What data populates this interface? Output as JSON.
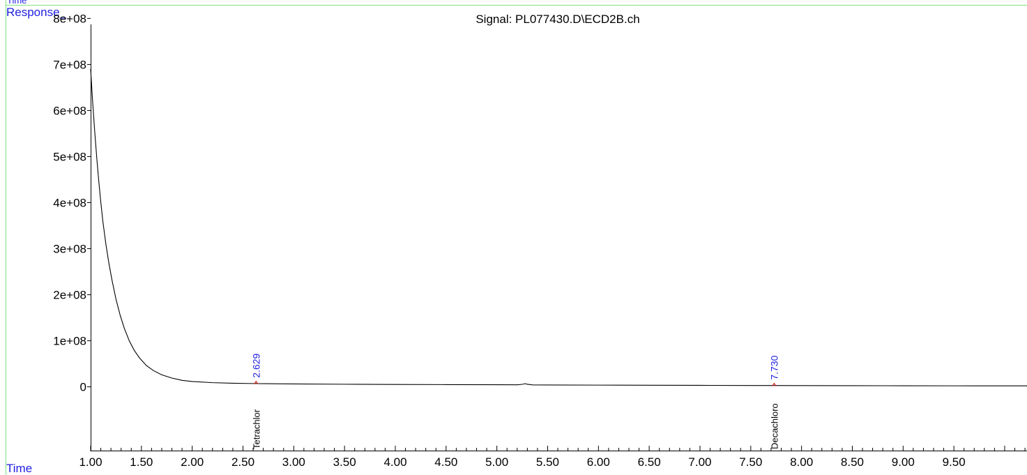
{
  "header": {
    "corner_label": "Time",
    "y_label": "Response_",
    "x_label": "Time",
    "title": "Signal: PL077430.D\\ECD2B.ch"
  },
  "colors": {
    "frame": "#7FE07F",
    "axis": "#000000",
    "trace": "#000000",
    "label_blue": "#1F1FE0",
    "peak_marker": "#E02020",
    "compound_text": "#000000"
  },
  "chart_data": {
    "type": "line",
    "title": "Signal: PL077430.D\\ECD2B.ch",
    "xlabel": "Time",
    "ylabel": "Response_",
    "xlim": [
      1.0,
      10.22
    ],
    "ylim": [
      -140000000,
      840000000
    ],
    "x_ticks": [
      "1.00",
      "1.50",
      "2.00",
      "2.50",
      "3.00",
      "3.50",
      "4.00",
      "4.50",
      "5.00",
      "5.50",
      "6.00",
      "6.50",
      "7.00",
      "7.50",
      "8.00",
      "8.50",
      "9.00",
      "9.50"
    ],
    "x_tick_values": [
      1.0,
      1.5,
      2.0,
      2.5,
      3.0,
      3.5,
      4.0,
      4.5,
      5.0,
      5.5,
      6.0,
      6.5,
      7.0,
      7.5,
      8.0,
      8.5,
      9.0,
      9.5
    ],
    "y_ticks": [
      "0",
      "1e+08",
      "2e+08",
      "3e+08",
      "4e+08",
      "5e+08",
      "6e+08",
      "7e+08",
      "8e+08"
    ],
    "y_tick_values": [
      0,
      100000000,
      200000000,
      300000000,
      400000000,
      500000000,
      600000000,
      700000000,
      800000000
    ],
    "grid": false,
    "series": [
      {
        "x": [
          1.0,
          1.02,
          1.04,
          1.06,
          1.08,
          1.1,
          1.12,
          1.15,
          1.18,
          1.21,
          1.25,
          1.29,
          1.33,
          1.38,
          1.43,
          1.48,
          1.55,
          1.62,
          1.7,
          1.8,
          1.9,
          2.0,
          2.2,
          2.4,
          2.6,
          2.629,
          2.65,
          2.8,
          3.0,
          3.5,
          4.0,
          4.5,
          5.0,
          5.2,
          5.25,
          5.28,
          5.3,
          5.35,
          5.5,
          6.0,
          6.5,
          7.0,
          7.5,
          7.73,
          7.75,
          8.0,
          8.5,
          9.0,
          9.5,
          10.0,
          10.22
        ],
        "y": [
          690000000,
          618000000,
          555000000,
          498000000,
          447000000,
          401000000,
          360000000,
          310000000,
          268000000,
          232000000,
          190000000,
          156000000,
          128000000,
          100000000,
          79000000,
          63000000,
          46000000,
          35000000,
          26000000,
          19000000,
          14000000,
          11500000,
          9000000,
          7800000,
          7100000,
          7300000,
          7000000,
          6600000,
          6200000,
          5600000,
          5200000,
          4800000,
          4500000,
          4400000,
          5400000,
          6900000,
          5500000,
          4200000,
          4000000,
          3700000,
          3400000,
          3200000,
          2900000,
          2900000,
          2900000,
          2700000,
          2500000,
          2300000,
          2200000,
          2100000,
          2100000
        ]
      }
    ],
    "peaks": [
      {
        "rt": "2.629",
        "x": 2.629,
        "y": 7300000,
        "compound": "Tetrachlor"
      },
      {
        "rt": "7.730",
        "x": 7.73,
        "y": 2900000,
        "compound": "Decachloro"
      }
    ]
  }
}
